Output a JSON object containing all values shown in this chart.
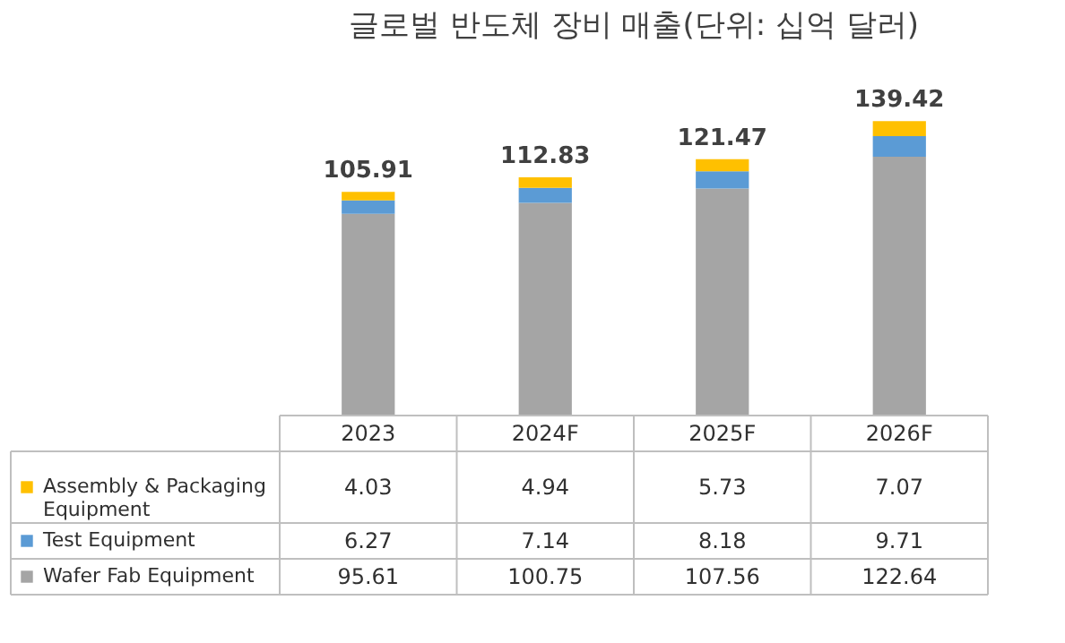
{
  "chart_data": {
    "type": "bar",
    "title": "글로벌 반도체 장비 매출(단위: 십억 달러)",
    "categories": [
      "2023",
      "2024F",
      "2025F",
      "2026F"
    ],
    "stacked": true,
    "legend": "bottom",
    "data_labels": true,
    "totals": [
      "105.91",
      "112.83",
      "121.47",
      "139.42"
    ],
    "series": [
      {
        "name": "Wafer Fab Equipment",
        "color": "#a5a5a5",
        "values": [
          95.61,
          100.75,
          107.56,
          122.64
        ]
      },
      {
        "name": "Test Equipment",
        "color": "#5b9bd5",
        "values": [
          6.27,
          7.14,
          8.18,
          9.71
        ]
      },
      {
        "name": "Assembly & Packaging Equipment",
        "color": "#ffc000",
        "values": [
          4.03,
          4.94,
          5.73,
          7.07
        ]
      }
    ]
  }
}
